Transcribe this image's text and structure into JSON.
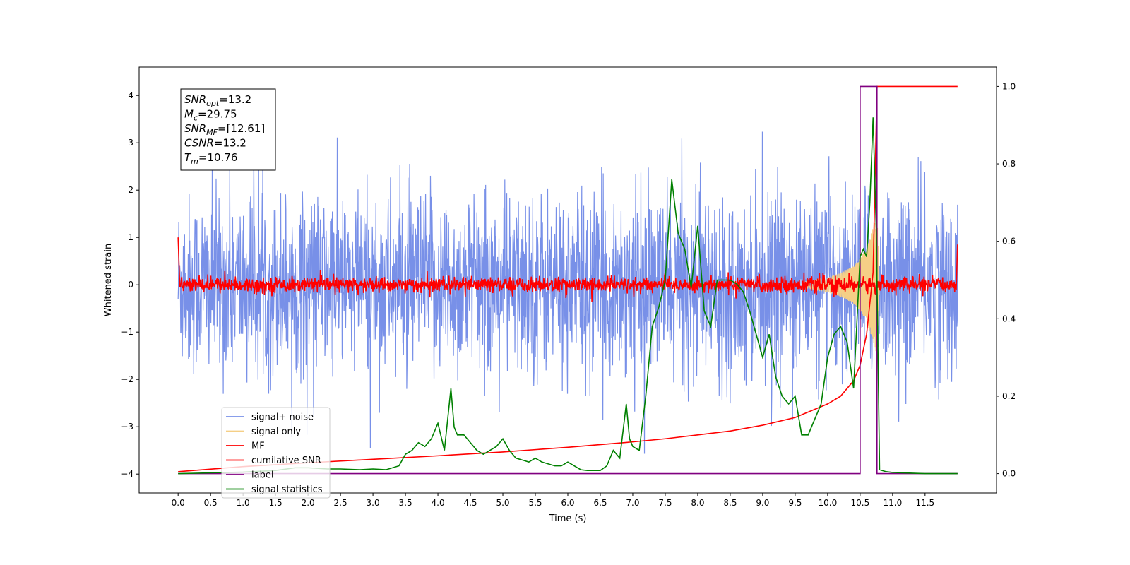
{
  "chart_data": {
    "type": "line",
    "xlabel": "Time (s)",
    "ylabel": "Whitened strain",
    "xlim": [
      -0.6,
      12.6
    ],
    "ylim": [
      -4.4,
      4.6
    ],
    "y2lim": [
      -0.05,
      1.05
    ],
    "x_ticks": [
      "0.0",
      "0.5",
      "1.0",
      "1.5",
      "2.0",
      "2.5",
      "3.0",
      "3.5",
      "4.0",
      "4.5",
      "5.0",
      "5.5",
      "6.0",
      "6.5",
      "7.0",
      "7.5",
      "8.0",
      "8.5",
      "9.0",
      "9.5",
      "10.0",
      "10.5",
      "11.0",
      "11.5"
    ],
    "y_ticks": [
      "4",
      "3",
      "2",
      "1",
      "0",
      "−1",
      "−2",
      "−3",
      "−4"
    ],
    "y2_ticks": [
      "1.0",
      "0.8",
      "0.6",
      "0.4",
      "0.2",
      "0.0"
    ],
    "grid": false,
    "legend_position": "lower-left",
    "annotation_lines": [
      {
        "name": "SNR",
        "sub": "opt",
        "value": "=13.2"
      },
      {
        "name": "M",
        "sub": "c",
        "value": "=29.75"
      },
      {
        "name": "SNR",
        "sub": "MF",
        "value": "=[12.61]"
      },
      {
        "name": "CSNR",
        "sub": "",
        "value": "=13.2"
      },
      {
        "name": "T",
        "sub": "m",
        "value": "=10.76"
      }
    ],
    "legend": [
      {
        "label": "signal+ noise",
        "color": "#7890e8"
      },
      {
        "label": "signal only",
        "color": "#f5cf86"
      },
      {
        "label": "MF",
        "color": "#ff0000"
      },
      {
        "label": "cumilative SNR",
        "color": "#ff0000"
      },
      {
        "label": "label",
        "color": "#800080"
      },
      {
        "label": "signal statistics",
        "color": "#008000"
      }
    ],
    "series": [
      {
        "name": "signal+ noise",
        "axis": "left",
        "color": "#7890e8",
        "note": "approx. white noise, std ~1.0, t 0–12 s",
        "t_start": 0.0,
        "t_end": 12.0,
        "noise_std": 1.0
      },
      {
        "name": "signal only",
        "axis": "left",
        "color": "#f5cf86",
        "x": [
          9.6,
          9.8,
          10.0,
          10.2,
          10.4,
          10.5,
          10.6,
          10.7,
          10.76,
          10.8
        ],
        "amplitude": [
          0.05,
          0.1,
          0.15,
          0.25,
          0.4,
          0.55,
          0.8,
          1.2,
          1.5,
          0.0
        ]
      },
      {
        "name": "MF",
        "axis": "left",
        "color": "#ff0000",
        "note": "approx. noise around 0, std ~0.08, spikes at ends",
        "x": [
          0.0,
          0.02,
          11.98,
          12.0
        ],
        "y": [
          1.0,
          0.3,
          0.3,
          0.85
        ],
        "noise_std": 0.08
      },
      {
        "name": "cumilative SNR",
        "axis": "right",
        "color": "#ff0000",
        "x": [
          0,
          1,
          2,
          3,
          4,
          5,
          6,
          7,
          7.5,
          8,
          8.5,
          9,
          9.5,
          10,
          10.2,
          10.4,
          10.5,
          10.6,
          10.7,
          10.76,
          10.8,
          12.0
        ],
        "y": [
          0.005,
          0.018,
          0.028,
          0.037,
          0.046,
          0.056,
          0.068,
          0.082,
          0.09,
          0.1,
          0.11,
          0.125,
          0.145,
          0.18,
          0.2,
          0.24,
          0.28,
          0.36,
          0.52,
          1.0,
          1.0,
          1.0
        ]
      },
      {
        "name": "label",
        "axis": "right",
        "color": "#800080",
        "x": [
          0.0,
          10.5,
          10.5,
          10.76,
          10.76,
          10.8,
          10.8,
          12.0
        ],
        "y": [
          0.0,
          0.0,
          1.0,
          1.0,
          0.0,
          0.0,
          0.0,
          0.0
        ]
      },
      {
        "name": "signal statistics",
        "axis": "right",
        "color": "#008000",
        "x": [
          0,
          0.5,
          1,
          1.5,
          1.8,
          2.0,
          2.3,
          2.5,
          2.8,
          3.0,
          3.2,
          3.4,
          3.5,
          3.6,
          3.7,
          3.8,
          3.9,
          4.0,
          4.1,
          4.2,
          4.25,
          4.3,
          4.4,
          4.5,
          4.6,
          4.7,
          4.8,
          4.9,
          5.0,
          5.1,
          5.2,
          5.3,
          5.4,
          5.5,
          5.6,
          5.7,
          5.8,
          5.9,
          6.0,
          6.1,
          6.2,
          6.3,
          6.4,
          6.5,
          6.6,
          6.7,
          6.8,
          6.9,
          6.95,
          7.0,
          7.1,
          7.2,
          7.3,
          7.4,
          7.5,
          7.6,
          7.7,
          7.8,
          7.9,
          8.0,
          8.1,
          8.2,
          8.3,
          8.4,
          8.5,
          8.6,
          8.7,
          8.8,
          8.9,
          9.0,
          9.1,
          9.2,
          9.3,
          9.4,
          9.5,
          9.6,
          9.7,
          9.8,
          9.9,
          10.0,
          10.1,
          10.2,
          10.3,
          10.4,
          10.5,
          10.55,
          10.6,
          10.65,
          10.7,
          10.75,
          10.8,
          10.9,
          11.0,
          11.5,
          12.0
        ],
        "y": [
          0.0,
          0.002,
          0.004,
          0.008,
          0.015,
          0.015,
          0.012,
          0.012,
          0.01,
          0.012,
          0.01,
          0.02,
          0.05,
          0.06,
          0.08,
          0.07,
          0.09,
          0.13,
          0.06,
          0.22,
          0.12,
          0.1,
          0.1,
          0.08,
          0.06,
          0.05,
          0.06,
          0.07,
          0.09,
          0.06,
          0.04,
          0.035,
          0.03,
          0.04,
          0.03,
          0.025,
          0.02,
          0.02,
          0.03,
          0.02,
          0.01,
          0.008,
          0.008,
          0.008,
          0.02,
          0.06,
          0.04,
          0.18,
          0.09,
          0.07,
          0.06,
          0.2,
          0.38,
          0.43,
          0.5,
          0.76,
          0.62,
          0.58,
          0.48,
          0.64,
          0.42,
          0.38,
          0.5,
          0.5,
          0.5,
          0.49,
          0.47,
          0.42,
          0.36,
          0.3,
          0.36,
          0.25,
          0.2,
          0.18,
          0.2,
          0.1,
          0.1,
          0.14,
          0.18,
          0.3,
          0.36,
          0.38,
          0.34,
          0.22,
          0.56,
          0.58,
          0.56,
          0.7,
          0.92,
          0.62,
          0.01,
          0.005,
          0.003,
          0.0,
          0.0
        ]
      }
    ]
  }
}
